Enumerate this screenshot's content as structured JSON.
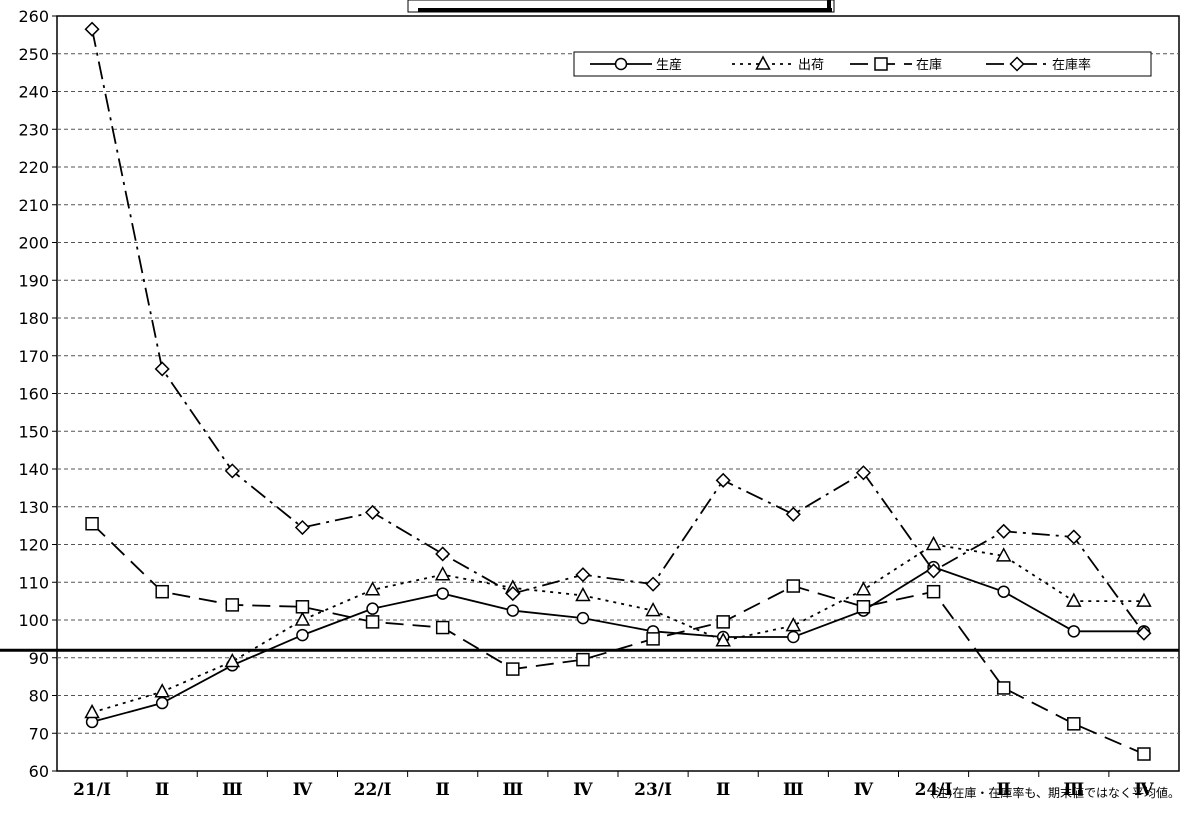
{
  "chart_data": {
    "type": "line",
    "title": "",
    "xlabel": "",
    "ylabel": "",
    "ylim": [
      60,
      260
    ],
    "yticks": [
      60,
      70,
      80,
      90,
      100,
      110,
      120,
      130,
      140,
      150,
      160,
      170,
      180,
      190,
      200,
      210,
      220,
      230,
      240,
      250,
      260
    ],
    "categories": [
      "21/Ⅰ",
      "Ⅱ",
      "Ⅲ",
      "Ⅳ",
      "22/Ⅰ",
      "Ⅱ",
      "Ⅲ",
      "Ⅳ",
      "23/Ⅰ",
      "Ⅱ",
      "Ⅲ",
      "Ⅳ",
      "24/Ⅰ",
      "Ⅱ",
      "Ⅲ",
      "Ⅳ"
    ],
    "grid": true,
    "legend_position": "top-right",
    "reference_line": 92,
    "series": [
      {
        "name": "生産",
        "style": "solid",
        "marker": "circle",
        "values": [
          73,
          78,
          88,
          96,
          103,
          107,
          102.5,
          100.5,
          97,
          95.5,
          95.5,
          102.5,
          114,
          107.5,
          97,
          97
        ]
      },
      {
        "name": "出荷",
        "style": "dotted",
        "marker": "triangle",
        "values": [
          75.5,
          81,
          89,
          100,
          108,
          112,
          108.5,
          106.5,
          102.5,
          94.5,
          98.5,
          108,
          120,
          117,
          105,
          105
        ]
      },
      {
        "name": "在庫",
        "style": "dashed",
        "marker": "square",
        "values": [
          125.5,
          107.5,
          104,
          103.5,
          99.5,
          98,
          87,
          89.5,
          95,
          99.5,
          109,
          103.5,
          107.5,
          82,
          72.5,
          64.5
        ]
      },
      {
        "name": "在庫率",
        "style": "dash-dot",
        "marker": "diamond",
        "values": [
          256.5,
          166.5,
          139.5,
          124.5,
          128.5,
          117.5,
          107,
          112,
          109.5,
          137,
          128,
          139,
          113,
          123.5,
          122,
          96.5
        ]
      }
    ],
    "note": "(注)在庫・在庫率も、期末値ではなく平均値。"
  },
  "colors": {
    "line": "#000000",
    "grid": "#555555",
    "background": "#ffffff"
  }
}
